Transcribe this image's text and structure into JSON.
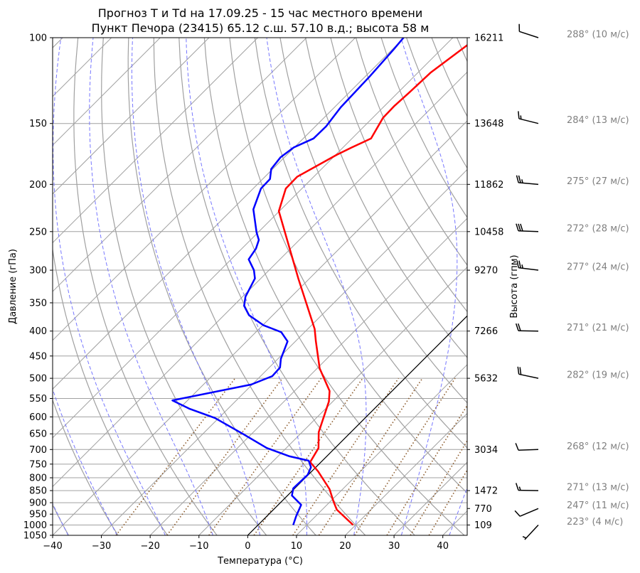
{
  "chart_data": {
    "type": "skew-t",
    "title": [
      "Прогноз T и Td на 17.09.25 - 15 час местного времени",
      "Пункт Печора (23415) 65.12 с.ш. 57.10 в.д.; высота 58 м"
    ],
    "xlabel": "Температура (°C)",
    "ylabel": "Давление (гПа)",
    "y2label": "Высота (гпм)",
    "xlim": [
      -40,
      45
    ],
    "ylim": [
      1050,
      100
    ],
    "x_ticks": [
      "−40",
      "−30",
      "−20",
      "−10",
      "0",
      "10",
      "20",
      "30",
      "40"
    ],
    "x_tick_values": [
      -40,
      -30,
      -20,
      -10,
      0,
      10,
      20,
      30,
      40
    ],
    "y_ticks": [
      "100",
      "150",
      "200",
      "250",
      "300",
      "350",
      "400",
      "450",
      "500",
      "550",
      "600",
      "650",
      "700",
      "750",
      "800",
      "850",
      "900",
      "950",
      "1000",
      "1050"
    ],
    "y_tick_values": [
      100,
      150,
      200,
      250,
      300,
      350,
      400,
      450,
      500,
      550,
      600,
      650,
      700,
      750,
      800,
      850,
      900,
      950,
      1000,
      1050
    ],
    "height_ticks": [
      {
        "p": 100,
        "h": "16211"
      },
      {
        "p": 150,
        "h": "13648"
      },
      {
        "p": 200,
        "h": "11862"
      },
      {
        "p": 250,
        "h": "10458"
      },
      {
        "p": 300,
        "h": "9270"
      },
      {
        "p": 400,
        "h": "7266"
      },
      {
        "p": 500,
        "h": "5632"
      },
      {
        "p": 700,
        "h": "3034"
      },
      {
        "p": 850,
        "h": "1472"
      },
      {
        "p": 925,
        "h": "770"
      },
      {
        "p": 1000,
        "h": "109"
      }
    ],
    "grid": true,
    "reference_isotherm_C": 0,
    "series": [
      {
        "name": "T",
        "color": "#ff0000",
        "points": [
          [
            1000,
            19.5
          ],
          [
            930,
            13.0
          ],
          [
            894,
            10.6
          ],
          [
            844,
            7.3
          ],
          [
            776,
            1.3
          ],
          [
            743,
            -2.2
          ],
          [
            695,
            -3.4
          ],
          [
            645,
            -6.6
          ],
          [
            558,
            -10.8
          ],
          [
            531,
            -12.8
          ],
          [
            477,
            -19.5
          ],
          [
            420,
            -25.8
          ],
          [
            396,
            -28.6
          ],
          [
            312,
            -42.3
          ],
          [
            227,
            -60.1
          ],
          [
            204,
            -63.3
          ],
          [
            193,
            -63.4
          ],
          [
            174,
            -59.8
          ],
          [
            168,
            -58.2
          ],
          [
            161,
            -56.1
          ],
          [
            146,
            -57.9
          ],
          [
            138,
            -58.0
          ],
          [
            130,
            -57.7
          ],
          [
            118,
            -57.4
          ],
          [
            100,
            -55.0
          ]
        ]
      },
      {
        "name": "Td",
        "color": "#0000ff",
        "points": [
          [
            1000,
            7.2
          ],
          [
            959,
            6.0
          ],
          [
            909,
            4.7
          ],
          [
            870,
            0.9
          ],
          [
            841,
            -0.3
          ],
          [
            789,
            -0.1
          ],
          [
            761,
            -1.0
          ],
          [
            738,
            -2.8
          ],
          [
            723,
            -7.6
          ],
          [
            695,
            -14.0
          ],
          [
            649,
            -22.0
          ],
          [
            603,
            -30.8
          ],
          [
            577,
            -38.0
          ],
          [
            555,
            -43.1
          ],
          [
            515,
            -30.2
          ],
          [
            495,
            -27.6
          ],
          [
            475,
            -27.8
          ],
          [
            456,
            -29.4
          ],
          [
            420,
            -31.6
          ],
          [
            402,
            -34.8
          ],
          [
            389,
            -39.9
          ],
          [
            371,
            -44.9
          ],
          [
            355,
            -47.8
          ],
          [
            340,
            -49.4
          ],
          [
            312,
            -51.2
          ],
          [
            300,
            -53.1
          ],
          [
            285,
            -56.4
          ],
          [
            271,
            -57.1
          ],
          [
            260,
            -58.3
          ],
          [
            251,
            -60.3
          ],
          [
            225,
            -65.7
          ],
          [
            204,
            -68.4
          ],
          [
            195,
            -68.5
          ],
          [
            186,
            -70.3
          ],
          [
            176,
            -70.8
          ],
          [
            168,
            -70.1
          ],
          [
            161,
            -67.9
          ],
          [
            152,
            -67.8
          ],
          [
            139,
            -68.7
          ],
          [
            120,
            -69.1
          ],
          [
            106,
            -69.7
          ],
          [
            100,
            -70.1
          ]
        ]
      }
    ],
    "winds": [
      {
        "p": 100,
        "dir": 288,
        "speed": 10,
        "label": "288° (10 м/с)"
      },
      {
        "p": 150,
        "dir": 284,
        "speed": 13,
        "label": "284° (13 м/с)"
      },
      {
        "p": 200,
        "dir": 275,
        "speed": 27,
        "label": "275° (27 м/с)"
      },
      {
        "p": 250,
        "dir": 272,
        "speed": 28,
        "label": "272° (28 м/с)"
      },
      {
        "p": 300,
        "dir": 277,
        "speed": 24,
        "label": "277° (24 м/с)"
      },
      {
        "p": 400,
        "dir": 271,
        "speed": 21,
        "label": "271° (21 м/с)"
      },
      {
        "p": 500,
        "dir": 282,
        "speed": 19,
        "label": "282° (19 м/с)"
      },
      {
        "p": 700,
        "dir": 268,
        "speed": 12,
        "label": "268° (12 м/с)"
      },
      {
        "p": 850,
        "dir": 271,
        "speed": 13,
        "label": "271° (13 м/с)"
      },
      {
        "p": 925,
        "dir": 247,
        "speed": 11,
        "label": "247° (11 м/с)"
      },
      {
        "p": 1000,
        "dir": 223,
        "speed": 4,
        "label": "223° (4 м/с)"
      }
    ],
    "colors": {
      "temperature": "#ff0000",
      "dewpoint": "#0000ff",
      "dry_adiabat": "#a0a0a0",
      "moist_adiabat": "#7777ff",
      "mixing_ratio": "#8b5a2b",
      "isotherm_zero": "#000000"
    }
  }
}
